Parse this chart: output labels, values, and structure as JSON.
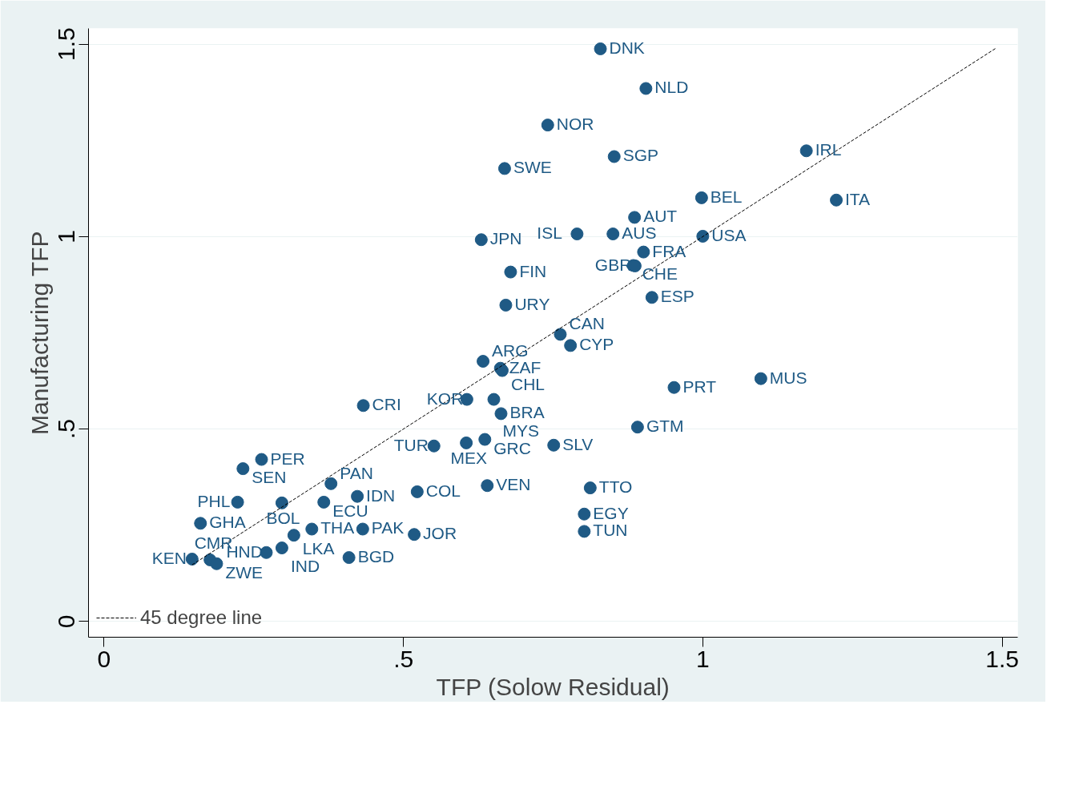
{
  "chart_data": {
    "type": "scatter",
    "xlabel": "TFP (Solow Residual)",
    "ylabel": "Manufacturing TFP",
    "xlim": [
      -0.026,
      1.526
    ],
    "ylim": [
      -0.041,
      1.541
    ],
    "xticks": [
      0,
      {
        "value": 0.5,
        "label": ".5"
      },
      1,
      1.5
    ],
    "yticks": [
      0,
      {
        "value": 0.5,
        "label": ".5"
      },
      1,
      1.5
    ],
    "grid": "y",
    "legend": "bottom left",
    "marker": "circle",
    "series": [
      {
        "color": "#1f5a85",
        "x": [
          0.829,
          0.905,
          0.741,
          0.669,
          0.852,
          1.173,
          0.998,
          1.223,
          0.886,
          0.79,
          0.85,
          1.0,
          0.63,
          0.901,
          0.884,
          0.887,
          0.679,
          0.915,
          0.671,
          0.762,
          0.779,
          0.633,
          0.662,
          0.665,
          0.606,
          0.651,
          0.663,
          0.433,
          0.551,
          0.605,
          0.636,
          0.751,
          0.891,
          0.952,
          1.097,
          0.263,
          0.232,
          0.379,
          0.423,
          0.367,
          0.297,
          0.223,
          0.523,
          0.64,
          0.812,
          0.802,
          0.802,
          0.161,
          0.347,
          0.432,
          0.518,
          0.317,
          0.297,
          0.271,
          0.409,
          0.147,
          0.177,
          0.188
        ],
        "values": [
          1.488,
          1.385,
          1.29,
          1.177,
          1.208,
          1.223,
          1.101,
          1.095,
          1.05,
          1.007,
          1.007,
          1.001,
          0.992,
          0.96,
          0.925,
          0.924,
          0.908,
          0.842,
          0.822,
          0.746,
          0.717,
          0.676,
          0.658,
          0.652,
          0.577,
          0.577,
          0.54,
          0.561,
          0.456,
          0.464,
          0.473,
          0.458,
          0.505,
          0.608,
          0.631,
          0.421,
          0.397,
          0.358,
          0.325,
          0.31,
          0.308,
          0.31,
          0.337,
          0.353,
          0.347,
          0.279,
          0.234,
          0.255,
          0.24,
          0.24,
          0.226,
          0.224,
          0.191,
          0.179,
          0.166,
          0.162,
          0.16,
          0.15
        ],
        "value_labels": [
          "DNK",
          "NLD",
          "NOR",
          "SWE",
          "SGP",
          "IRL",
          "BEL",
          "ITA",
          "AUT",
          "ISL",
          "AUS",
          "USA",
          "JPN",
          "FRA",
          "CHE",
          "GBR",
          "FIN",
          "ESP",
          "URY",
          "CAN",
          "CYP",
          "ARG",
          "ZAF",
          "CHL",
          "KOR",
          "MYS",
          "BRA",
          "CRI",
          "TUR",
          "MEX",
          "GRC",
          "SLV",
          "GTM",
          "PRT",
          "MUS",
          "PER",
          "SEN",
          "PAN",
          "IDN",
          "ECU",
          "BOL",
          "PHL",
          "COL",
          "VEN",
          "TTO",
          "EGY",
          "TUN",
          "GHA",
          "THA",
          "PAK",
          "JOR",
          "LKA",
          "IND",
          "HND",
          "BGD",
          "KEN",
          "CMR",
          "ZWE"
        ]
      },
      {
        "type": "line",
        "name": "45 degree line",
        "color": "#000000",
        "line_style": "dashed",
        "marker": "none",
        "x": [
          0.147,
          1.49
        ],
        "values": [
          0.147,
          1.49
        ]
      }
    ]
  }
}
